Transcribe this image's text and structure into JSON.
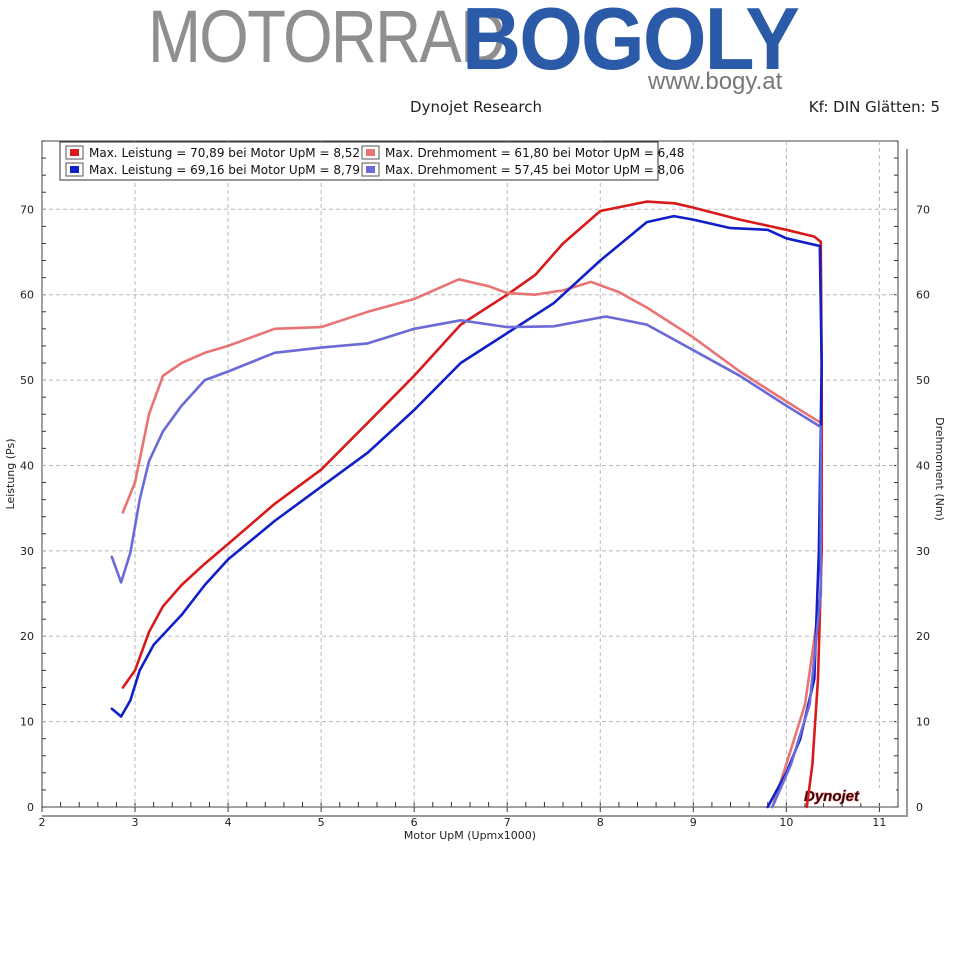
{
  "logo": {
    "part1": "MOTORRAD",
    "part2": "BOGOLY",
    "url": "www.bogy.at"
  },
  "header": {
    "title": "Dynojet Research",
    "note": "Kf: DIN Glätten: 5"
  },
  "watermark": "Dynojet",
  "colors": {
    "red_dark": "#d91a1a",
    "red_light": "#e87474",
    "blue_dark": "#1020c8",
    "blue_light": "#6a6ad8"
  },
  "chart_data": {
    "type": "line",
    "xlabel": "Motor UpM (Upmx1000)",
    "ylabel": "Leistung (Ps)",
    "y2label": "Drehmoment (Nm)",
    "xlim": [
      2,
      11.2
    ],
    "ylim": [
      0,
      78
    ],
    "xticks": [
      "2",
      "3",
      "4",
      "5",
      "6",
      "7",
      "8",
      "9",
      "10",
      "11"
    ],
    "yticks": [
      "0",
      "10",
      "20",
      "30",
      "40",
      "50",
      "60",
      "70"
    ],
    "grid": true,
    "legend": "top-left",
    "legend_entries": [
      "Max. Leistung = 70,89 bei Motor UpM = 8,52",
      "Max. Drehmoment = 61,80 bei Motor UpM = 6,48",
      "Max. Leistung = 69,16 bei Motor UpM = 8,79",
      "Max. Drehmoment = 57,45 bei Motor UpM = 8,06"
    ],
    "series": [
      {
        "color": "#d91a1a",
        "points": [
          [
            2.87,
            14
          ],
          [
            3.0,
            16
          ],
          [
            3.15,
            20.5
          ],
          [
            3.3,
            23.5
          ],
          [
            3.5,
            26
          ],
          [
            3.75,
            28.5
          ],
          [
            4.0,
            30.8
          ],
          [
            4.5,
            35.5
          ],
          [
            5.0,
            39.5
          ],
          [
            5.5,
            45
          ],
          [
            6.0,
            50.5
          ],
          [
            6.5,
            56.5
          ],
          [
            7.0,
            60
          ],
          [
            7.3,
            62.3
          ],
          [
            7.6,
            66
          ],
          [
            8.0,
            69.8
          ],
          [
            8.5,
            70.9
          ],
          [
            8.8,
            70.7
          ],
          [
            9.0,
            70.2
          ],
          [
            9.5,
            68.8
          ],
          [
            10.0,
            67.6
          ],
          [
            10.3,
            66.8
          ],
          [
            10.37,
            66.2
          ],
          [
            10.38,
            50
          ],
          [
            10.38,
            30
          ],
          [
            10.34,
            15
          ],
          [
            10.28,
            5
          ],
          [
            10.22,
            0
          ]
        ]
      },
      {
        "color": "#e87474",
        "points": [
          [
            2.87,
            34.5
          ],
          [
            3.0,
            38
          ],
          [
            3.15,
            46
          ],
          [
            3.3,
            50.5
          ],
          [
            3.5,
            52
          ],
          [
            3.75,
            53.2
          ],
          [
            4.0,
            54
          ],
          [
            4.5,
            56
          ],
          [
            5.0,
            56.2
          ],
          [
            5.5,
            58
          ],
          [
            6.0,
            59.5
          ],
          [
            6.48,
            61.8
          ],
          [
            6.8,
            61
          ],
          [
            7.0,
            60.2
          ],
          [
            7.3,
            60
          ],
          [
            7.6,
            60.5
          ],
          [
            7.9,
            61.5
          ],
          [
            8.2,
            60.3
          ],
          [
            8.5,
            58.5
          ],
          [
            9.0,
            55
          ],
          [
            9.5,
            51
          ],
          [
            10.0,
            47.5
          ],
          [
            10.37,
            45
          ],
          [
            10.37,
            25
          ],
          [
            10.2,
            12
          ],
          [
            10.0,
            5
          ],
          [
            9.85,
            0
          ]
        ]
      },
      {
        "color": "#1020c8",
        "points": [
          [
            2.75,
            11.5
          ],
          [
            2.85,
            10.6
          ],
          [
            2.95,
            12.5
          ],
          [
            3.05,
            16
          ],
          [
            3.2,
            19
          ],
          [
            3.5,
            22.5
          ],
          [
            3.75,
            26
          ],
          [
            4.0,
            29
          ],
          [
            4.5,
            33.5
          ],
          [
            5.0,
            37.5
          ],
          [
            5.5,
            41.5
          ],
          [
            6.0,
            46.5
          ],
          [
            6.5,
            52
          ],
          [
            7.0,
            55.5
          ],
          [
            7.5,
            59
          ],
          [
            8.0,
            64
          ],
          [
            8.5,
            68.5
          ],
          [
            8.79,
            69.2
          ],
          [
            9.0,
            68.8
          ],
          [
            9.4,
            67.8
          ],
          [
            9.8,
            67.6
          ],
          [
            10.0,
            66.6
          ],
          [
            10.36,
            65.7
          ],
          [
            10.38,
            52
          ],
          [
            10.35,
            30
          ],
          [
            10.3,
            15
          ],
          [
            10.15,
            8
          ],
          [
            10.0,
            4
          ],
          [
            9.8,
            0
          ]
        ]
      },
      {
        "color": "#6a6ad8",
        "points": [
          [
            2.75,
            29.3
          ],
          [
            2.85,
            26.3
          ],
          [
            2.95,
            29.8
          ],
          [
            3.05,
            36
          ],
          [
            3.15,
            40.5
          ],
          [
            3.3,
            44
          ],
          [
            3.5,
            47
          ],
          [
            3.75,
            50
          ],
          [
            4.0,
            51
          ],
          [
            4.5,
            53.2
          ],
          [
            5.0,
            53.8
          ],
          [
            5.5,
            54.3
          ],
          [
            6.0,
            56
          ],
          [
            6.5,
            57
          ],
          [
            7.0,
            56.2
          ],
          [
            7.5,
            56.3
          ],
          [
            8.06,
            57.45
          ],
          [
            8.5,
            56.5
          ],
          [
            9.0,
            53.5
          ],
          [
            9.5,
            50.5
          ],
          [
            10.0,
            47
          ],
          [
            10.37,
            44.5
          ],
          [
            10.37,
            25
          ],
          [
            10.25,
            12
          ],
          [
            10.05,
            5
          ],
          [
            9.85,
            0
          ]
        ]
      }
    ]
  }
}
